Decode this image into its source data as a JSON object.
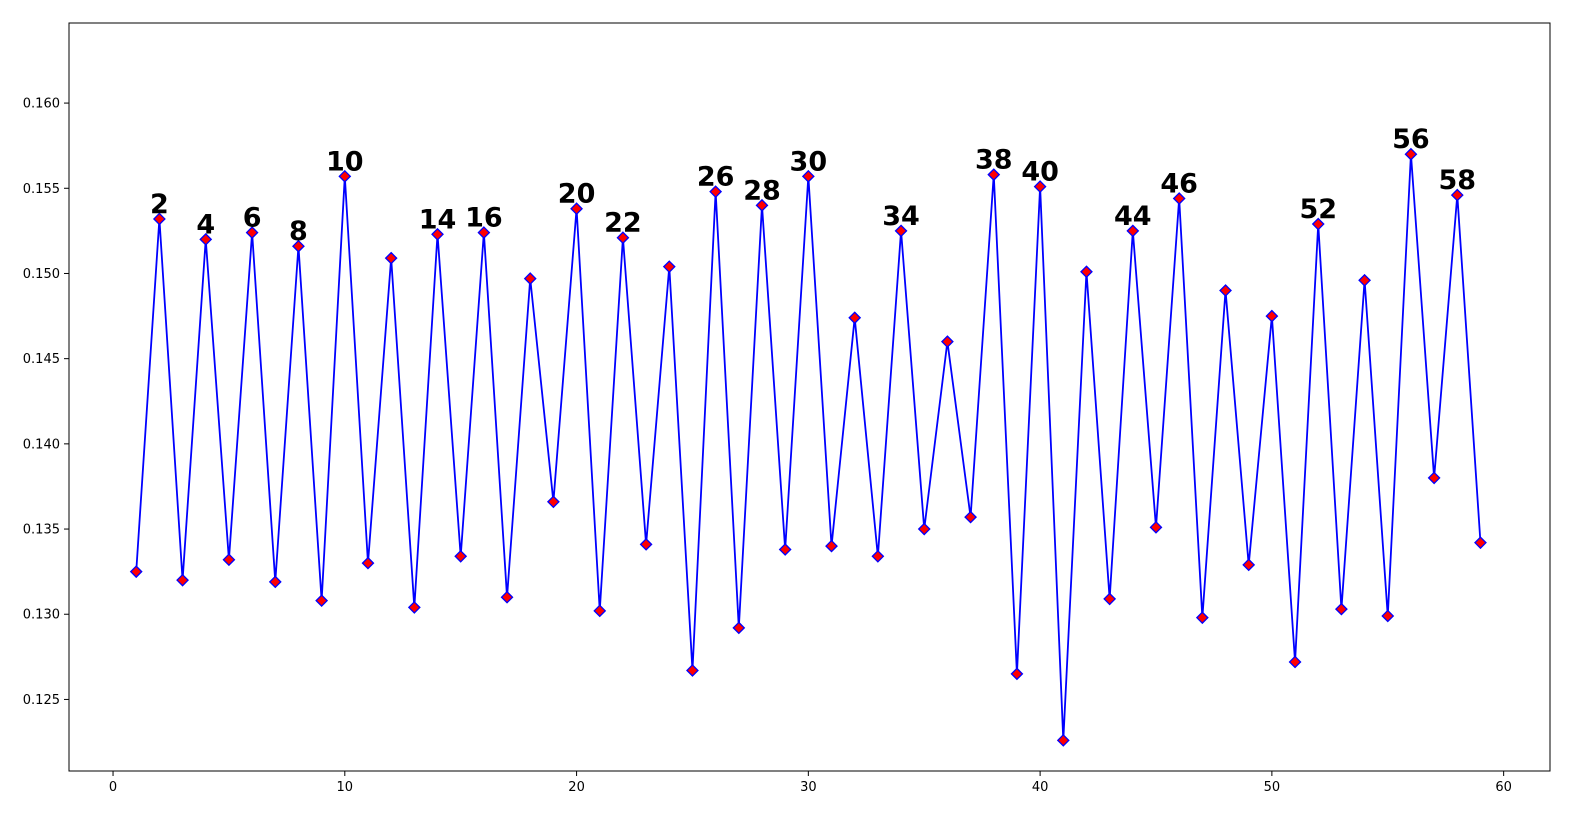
{
  "chart_data": {
    "type": "line",
    "title": "",
    "xlabel": "",
    "ylabel": "",
    "xlim": [
      -1.9,
      62.0
    ],
    "ylim": [
      0.1208,
      0.1647
    ],
    "xticks": [
      0,
      10,
      20,
      30,
      40,
      50,
      60
    ],
    "yticks": [
      0.125,
      0.13,
      0.135,
      0.14,
      0.145,
      0.15,
      0.155,
      0.16
    ],
    "grid": false,
    "legend": null,
    "line_color": "#0000ff",
    "marker_face_color": "#ff0000",
    "marker_edge_color": "#0000ff",
    "marker": "diamond",
    "label_color": "#000000",
    "series": [
      {
        "x": [
          1,
          2,
          3,
          4,
          5,
          6,
          7,
          8,
          9,
          10,
          11,
          12,
          13,
          14,
          15,
          16,
          17,
          18,
          19,
          20,
          21,
          22,
          23,
          24,
          25,
          26,
          27,
          28,
          29,
          30,
          31,
          32,
          33,
          34,
          35,
          36,
          37,
          38,
          39,
          40,
          41,
          42,
          43,
          44,
          45,
          46,
          47,
          48,
          49,
          50,
          51,
          52,
          53,
          54,
          55,
          56,
          57,
          58,
          59
        ],
        "values": [
          0.1325,
          0.1532,
          0.132,
          0.152,
          0.1332,
          0.1524,
          0.1319,
          0.1516,
          0.1308,
          0.1557,
          0.133,
          0.1509,
          0.1304,
          0.1523,
          0.1334,
          0.1524,
          0.131,
          0.1497,
          0.1366,
          0.1538,
          0.1302,
          0.1521,
          0.1341,
          0.1504,
          0.1267,
          0.1548,
          0.1292,
          0.154,
          0.1338,
          0.1557,
          0.134,
          0.1474,
          0.1334,
          0.1525,
          0.135,
          0.146,
          0.1357,
          0.1558,
          0.1265,
          0.1551,
          0.1226,
          0.1501,
          0.1309,
          0.1525,
          0.1351,
          0.1544,
          0.1298,
          0.149,
          0.1329,
          0.1475,
          0.1272,
          0.1529,
          0.1303,
          0.1496,
          0.1299,
          0.157,
          0.138,
          0.1546,
          0.1342
        ]
      }
    ],
    "annotations": [
      {
        "x": 2,
        "y": 0.1532,
        "text": "2"
      },
      {
        "x": 4,
        "y": 0.152,
        "text": "4"
      },
      {
        "x": 6,
        "y": 0.1524,
        "text": "6"
      },
      {
        "x": 8,
        "y": 0.1516,
        "text": "8"
      },
      {
        "x": 10,
        "y": 0.1557,
        "text": "10"
      },
      {
        "x": 14,
        "y": 0.1523,
        "text": "14"
      },
      {
        "x": 16,
        "y": 0.1524,
        "text": "16"
      },
      {
        "x": 20,
        "y": 0.1538,
        "text": "20"
      },
      {
        "x": 22,
        "y": 0.1521,
        "text": "22"
      },
      {
        "x": 26,
        "y": 0.1548,
        "text": "26"
      },
      {
        "x": 28,
        "y": 0.154,
        "text": "28"
      },
      {
        "x": 30,
        "y": 0.1557,
        "text": "30"
      },
      {
        "x": 34,
        "y": 0.1525,
        "text": "34"
      },
      {
        "x": 38,
        "y": 0.1558,
        "text": "38"
      },
      {
        "x": 40,
        "y": 0.1551,
        "text": "40"
      },
      {
        "x": 44,
        "y": 0.1525,
        "text": "44"
      },
      {
        "x": 46,
        "y": 0.1544,
        "text": "46"
      },
      {
        "x": 52,
        "y": 0.1529,
        "text": "52"
      },
      {
        "x": 56,
        "y": 0.157,
        "text": "56"
      },
      {
        "x": 58,
        "y": 0.1546,
        "text": "58"
      }
    ]
  }
}
